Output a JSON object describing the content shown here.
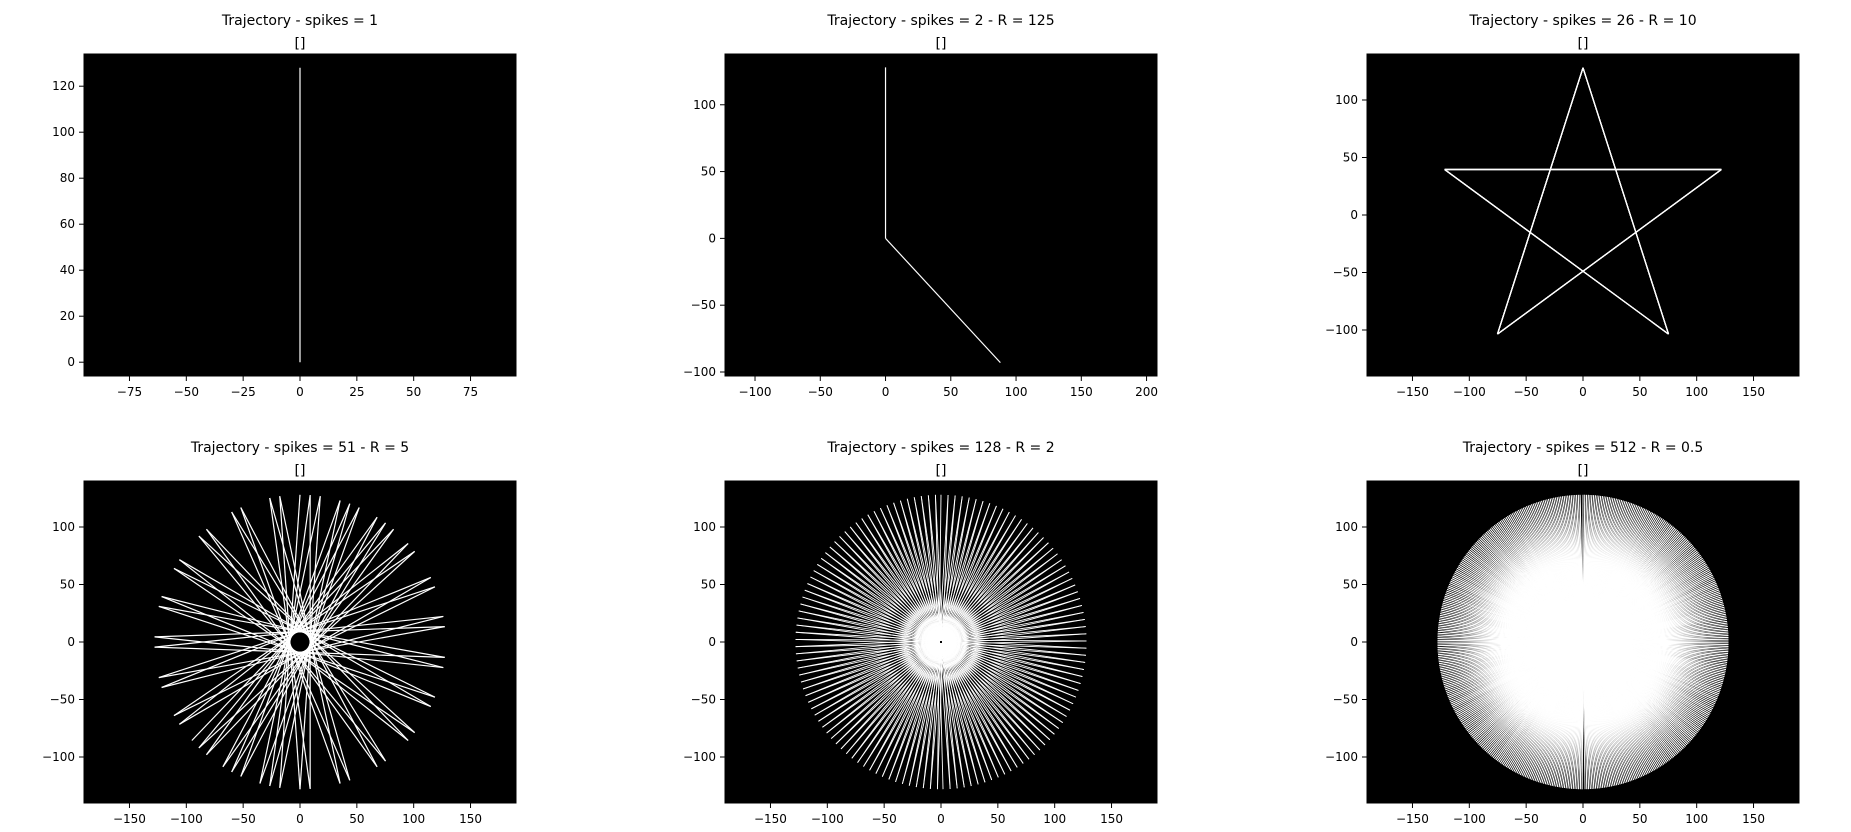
{
  "figure": {
    "background": "#ffffff",
    "axes_background": "#000000",
    "line_color": "#ffffff"
  },
  "chart_data": [
    {
      "type": "line",
      "title": "Trajectory - spikes = 1",
      "subtitle": "[]",
      "xlim": [
        -95,
        95
      ],
      "ylim": [
        -6,
        134
      ],
      "xticks": [
        -75,
        -50,
        -25,
        0,
        25,
        50,
        75
      ],
      "yticks": [
        0,
        20,
        40,
        60,
        80,
        100,
        120
      ],
      "grid": false,
      "pattern": {
        "kind": "lines",
        "segments": [
          [
            [
              0,
              0
            ],
            [
              0,
              128
            ]
          ]
        ]
      }
    },
    {
      "type": "line",
      "title": "Trajectory - spikes = 2 - R = 125",
      "subtitle": "[]",
      "xlim": [
        -123,
        208
      ],
      "ylim": [
        -103,
        138
      ],
      "xticks": [
        -100,
        -50,
        0,
        50,
        100,
        150,
        200
      ],
      "yticks": [
        -100,
        -50,
        0,
        50,
        100
      ],
      "grid": false,
      "pattern": {
        "kind": "lines",
        "segments": [
          [
            [
              0,
              128
            ],
            [
              0,
              0
            ]
          ],
          [
            [
              0,
              0
            ],
            [
              88,
              -93
            ]
          ]
        ]
      }
    },
    {
      "type": "line",
      "title": "Trajectory - spikes = 26 - R = 10",
      "subtitle": "[]",
      "xlim": [
        -190,
        190
      ],
      "ylim": [
        -140,
        140
      ],
      "xticks": [
        -150,
        -100,
        -50,
        0,
        50,
        100,
        150
      ],
      "yticks": [
        -100,
        -50,
        0,
        50,
        100
      ],
      "grid": false,
      "pattern": {
        "kind": "star",
        "spikes": 26,
        "radius": 128,
        "step_deg": 144
      }
    },
    {
      "type": "line",
      "title": "Trajectory - spikes = 51 - R = 5",
      "subtitle": "[]",
      "xlim": [
        -190,
        190
      ],
      "ylim": [
        -140,
        140
      ],
      "xticks": [
        -150,
        -100,
        -50,
        0,
        50,
        100,
        150
      ],
      "yticks": [
        -100,
        -50,
        0,
        50,
        100
      ],
      "grid": false,
      "pattern": {
        "kind": "star",
        "spikes": 51,
        "radius": 128,
        "step_deg": 172
      }
    },
    {
      "type": "line",
      "title": "Trajectory - spikes = 128 - R = 2",
      "subtitle": "[]",
      "xlim": [
        -190,
        190
      ],
      "ylim": [
        -140,
        140
      ],
      "xticks": [
        -150,
        -100,
        -50,
        0,
        50,
        100,
        150
      ],
      "yticks": [
        -100,
        -50,
        0,
        50,
        100
      ],
      "grid": false,
      "pattern": {
        "kind": "star",
        "spikes": 128,
        "radius": 128,
        "step_deg": 178.6
      }
    },
    {
      "type": "line",
      "title": "Trajectory - spikes = 512 - R = 0.5",
      "subtitle": "[]",
      "xlim": [
        -190,
        190
      ],
      "ylim": [
        -140,
        140
      ],
      "xticks": [
        -150,
        -100,
        -50,
        0,
        50,
        100,
        150
      ],
      "yticks": [
        -100,
        -50,
        0,
        50,
        100
      ],
      "grid": false,
      "pattern": {
        "kind": "star",
        "spikes": 512,
        "radius": 128,
        "step_deg": 179.65
      }
    }
  ]
}
